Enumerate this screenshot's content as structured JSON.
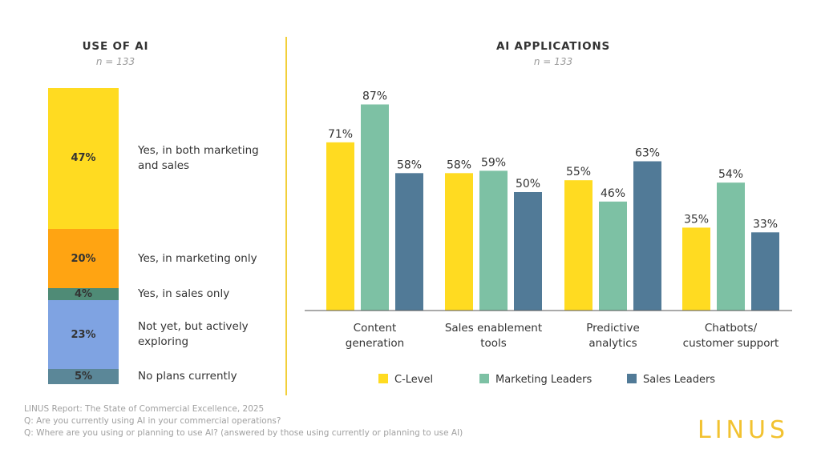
{
  "left_panel": {
    "title": "USE OF AI",
    "subtitle": "n = 133",
    "segments": [
      {
        "value": "47%",
        "label_lines": [
          "Yes, in both marketing",
          "and sales"
        ],
        "color": "#FFDB21"
      },
      {
        "value": "20%",
        "label_lines": [
          "Yes, in marketing only"
        ],
        "color": "#FFA412"
      },
      {
        "value": "4%",
        "label_lines": [
          "Yes, in sales only"
        ],
        "color": "#4F8B76"
      },
      {
        "value": "23%",
        "label_lines": [
          "Not yet, but actively",
          "exploring"
        ],
        "color": "#7FA3E2"
      },
      {
        "value": "5%",
        "label_lines": [
          "No plans currently"
        ],
        "color": "#5B8798"
      }
    ]
  },
  "right_panel": {
    "title": "AI APPLICATIONS",
    "subtitle": "n = 133"
  },
  "footer": {
    "source": "LINUS Report: The State of Commercial Excellence, 2025",
    "q1": "Q:  Are you currently using AI in your commercial operations?",
    "q2": "Q: Where are you using or planning to use AI? (answered by those using currently or planning to use AI)"
  },
  "logo": {
    "text": "LINUS",
    "color": "#F2C230"
  },
  "chart_data": [
    {
      "type": "bar",
      "stacked": true,
      "title": "USE OF AI",
      "subtitle": "n = 133",
      "categories": [
        "Yes, in both marketing and sales",
        "Yes, in marketing only",
        "Yes, in sales only",
        "Not yet, but actively exploring",
        "No plans currently"
      ],
      "values": [
        47,
        20,
        4,
        23,
        5
      ],
      "unit": "%"
    },
    {
      "type": "bar",
      "title": "AI APPLICATIONS",
      "subtitle": "n = 133",
      "categories": [
        [
          "Content",
          "generation"
        ],
        [
          "Sales enablement",
          "tools"
        ],
        [
          "Predictive",
          "analytics"
        ],
        [
          "Chatbots/",
          "customer support"
        ]
      ],
      "series": [
        {
          "name": "C-Level",
          "color": "#FFDB21",
          "values": [
            71,
            58,
            55,
            35
          ]
        },
        {
          "name": "Marketing Leaders",
          "color": "#7DC1A4",
          "values": [
            87,
            59,
            46,
            54
          ]
        },
        {
          "name": "Sales Leaders",
          "color": "#517A97",
          "values": [
            58,
            50,
            63,
            33
          ]
        }
      ],
      "ylim": [
        0,
        100
      ],
      "unit": "%",
      "legend_position": "bottom"
    }
  ]
}
